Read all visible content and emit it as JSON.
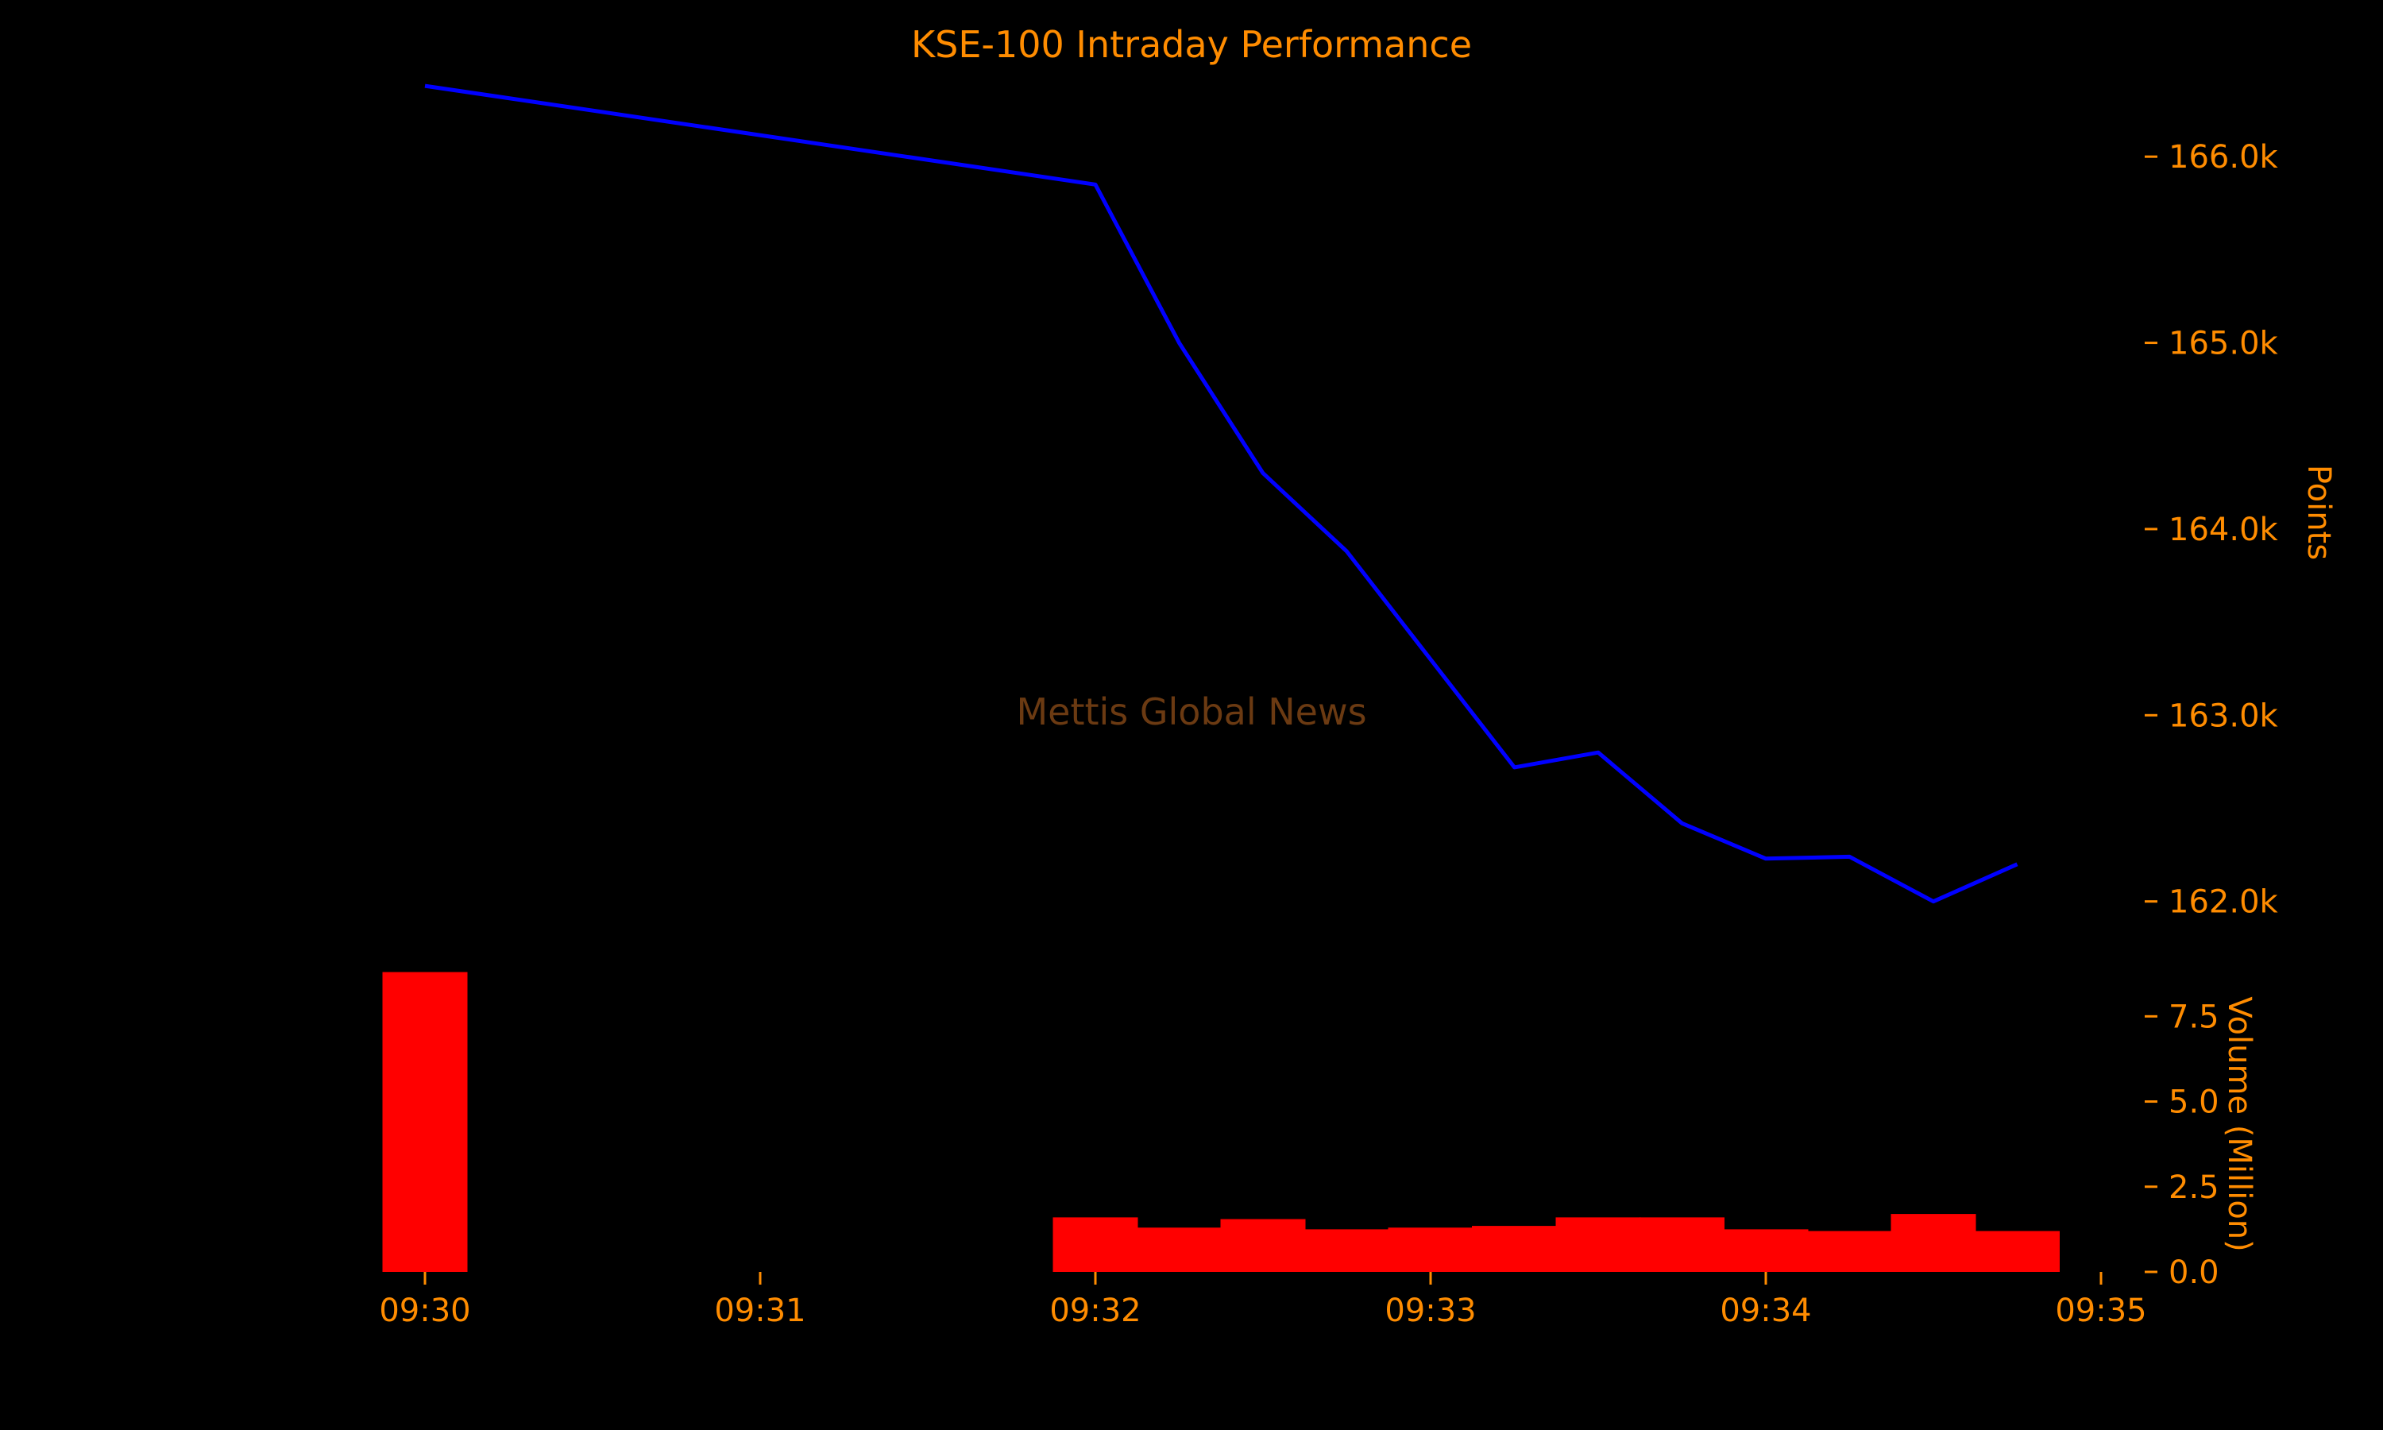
{
  "colors": {
    "background": "#000000",
    "text": "#FF8C00",
    "line": "#0000FF",
    "bars": "#FF0000",
    "watermark": "#6B3A12"
  },
  "chart_data": [
    {
      "type": "line",
      "title": "KSE-100 Intraday Performance",
      "xlabel": "",
      "ylabel": "Points",
      "yaxis_side": "right",
      "x_unit": "time",
      "xlim": [
        "09:29:07",
        "09:35:00"
      ],
      "ylim": [
        161700,
        166500
      ],
      "y_ticks": [
        162000,
        163000,
        164000,
        165000,
        166000
      ],
      "y_tick_labels": [
        "162.0k",
        "163.0k",
        "164.0k",
        "165.0k",
        "166.0k"
      ],
      "grid": false,
      "series": [
        {
          "x": [
            "09:30:00",
            "09:32:00",
            "09:32:15",
            "09:32:30",
            "09:32:45",
            "09:33:00",
            "09:33:15",
            "09:33:30",
            "09:33:45",
            "09:34:00",
            "09:34:15",
            "09:34:30",
            "09:34:45"
          ],
          "values": [
            166380,
            165850,
            165000,
            164300,
            163880,
            163300,
            162720,
            162800,
            162420,
            162230,
            162240,
            162000,
            162200
          ]
        }
      ]
    },
    {
      "type": "bar",
      "xlabel": "",
      "ylabel": "Volume (Million)",
      "yaxis_side": "right",
      "x_unit": "time",
      "xlim": [
        "09:29:07",
        "09:35:00"
      ],
      "x_tick_labels": [
        "09:30",
        "09:31",
        "09:32",
        "09:33",
        "09:34",
        "09:35"
      ],
      "ylim": [
        0,
        9
      ],
      "y_ticks": [
        0,
        2.5,
        5,
        7.5
      ],
      "y_tick_labels": [
        "0.0",
        "2.5",
        "5.0",
        "7.5"
      ],
      "grid": false,
      "series": [
        {
          "x": [
            "09:30:00",
            "09:32:00",
            "09:32:15",
            "09:32:30",
            "09:32:45",
            "09:33:00",
            "09:33:15",
            "09:33:30",
            "09:33:45",
            "09:34:00",
            "09:34:15",
            "09:34:30",
            "09:34:45"
          ],
          "values": [
            8.8,
            1.6,
            1.3,
            1.55,
            1.25,
            1.3,
            1.35,
            1.6,
            1.6,
            1.25,
            1.2,
            1.7,
            1.2
          ]
        }
      ]
    }
  ],
  "watermark": "Mettis Global News"
}
